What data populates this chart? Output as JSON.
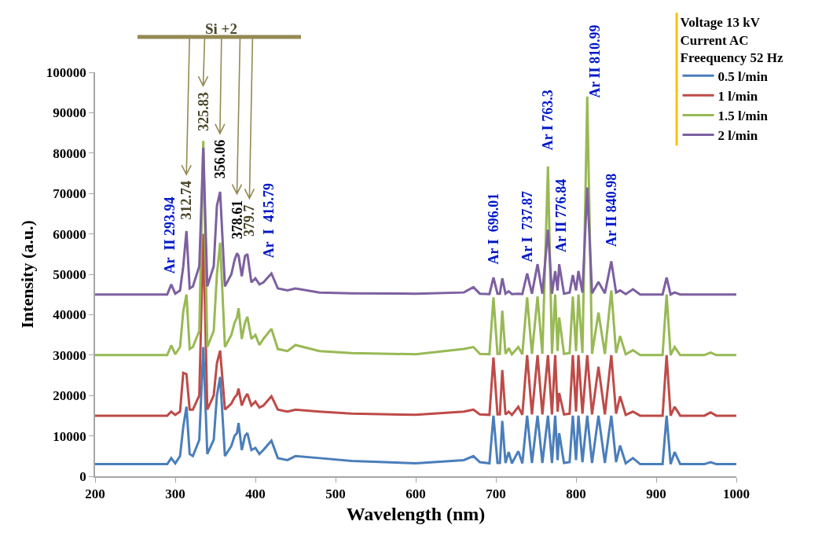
{
  "chart_data": {
    "type": "line",
    "xlabel": "Wavelength (nm)",
    "ylabel": "Intensity (a.u.)",
    "legend_title": "Voltage 13 kV\nCurrent AC\nFreequency 52 Hz",
    "legend": "top right",
    "grid": false,
    "marker": "none",
    "line_style": "solid",
    "xlim": [
      200,
      1000
    ],
    "xticks": [
      200,
      300,
      400,
      500,
      600,
      700,
      800,
      900,
      1000
    ],
    "ylim": [
      0,
      100000
    ],
    "yticks": [
      0,
      10000,
      20000,
      30000,
      40000,
      50000,
      60000,
      70000,
      80000,
      90000,
      100000
    ],
    "x": [
      200,
      290,
      295,
      300,
      306,
      310,
      314,
      318,
      322,
      330,
      335,
      340,
      348,
      352,
      356,
      362,
      370,
      374,
      377,
      379,
      383,
      387,
      390,
      395,
      400,
      405,
      410,
      420,
      428,
      440,
      450,
      480,
      520,
      600,
      660,
      672,
      680,
      692,
      697,
      702,
      705,
      708,
      712,
      716,
      720,
      728,
      733,
      739,
      745,
      752,
      758,
      765,
      770,
      774,
      777,
      779,
      785,
      792,
      796,
      800,
      803,
      808,
      814,
      820,
      828,
      836,
      844,
      850,
      855,
      862,
      871,
      880,
      908,
      913,
      918,
      923,
      930,
      960,
      968,
      975,
      1000
    ],
    "series": [
      {
        "name": "0.5 l/min",
        "color": "#4a7ebb",
        "values": [
          3000,
          3000,
          4500,
          3200,
          5000,
          12200,
          17200,
          5500,
          5000,
          9000,
          32000,
          5500,
          9000,
          20000,
          24600,
          5000,
          7500,
          10000,
          10700,
          13200,
          6500,
          10000,
          10700,
          6500,
          7000,
          5500,
          6500,
          8800,
          4500,
          4000,
          5000,
          4500,
          3800,
          3200,
          4000,
          5000,
          3500,
          3200,
          15000,
          3300,
          3300,
          13700,
          3300,
          6000,
          3200,
          6200,
          3200,
          15000,
          3300,
          15000,
          3300,
          15000,
          3300,
          15000,
          4000,
          10700,
          3300,
          3500,
          15000,
          4000,
          15000,
          3500,
          15000,
          3300,
          15000,
          3300,
          15000,
          3500,
          7600,
          3200,
          4500,
          3000,
          3000,
          15000,
          3000,
          6000,
          3000,
          3000,
          3500,
          3000,
          3000
        ]
      },
      {
        "name": "1 l/min",
        "color": "#be4b48",
        "values": [
          15000,
          15000,
          16000,
          15200,
          16000,
          25600,
          25300,
          16500,
          16500,
          20000,
          60000,
          16500,
          20000,
          28000,
          31100,
          16500,
          18000,
          19500,
          20200,
          21700,
          17500,
          19500,
          20400,
          17500,
          18500,
          17000,
          17500,
          19800,
          16500,
          16000,
          16500,
          16000,
          15500,
          15200,
          16000,
          16500,
          15300,
          15200,
          29400,
          15300,
          15300,
          26300,
          15300,
          16000,
          15200,
          17200,
          15200,
          30000,
          15300,
          30000,
          15300,
          30000,
          15300,
          30000,
          16000,
          20600,
          15300,
          15500,
          30000,
          16000,
          30000,
          15500,
          30000,
          15300,
          27100,
          15300,
          30000,
          15500,
          19800,
          15200,
          16000,
          15000,
          15000,
          30000,
          15000,
          17200,
          15000,
          15000,
          15800,
          15000,
          15000
        ]
      },
      {
        "name": "1.5 l/min",
        "color": "#98b954",
        "values": [
          30000,
          30000,
          32400,
          30200,
          32000,
          40800,
          45000,
          31500,
          32000,
          36000,
          83000,
          32000,
          36000,
          50000,
          57800,
          32000,
          35000,
          38000,
          39300,
          41600,
          34000,
          38000,
          39500,
          34000,
          35000,
          32500,
          34000,
          36500,
          31500,
          31000,
          32500,
          31000,
          30500,
          30200,
          31500,
          32000,
          30300,
          30200,
          44300,
          30300,
          30300,
          41000,
          30300,
          31700,
          30200,
          32000,
          30200,
          44300,
          30300,
          44500,
          30300,
          76700,
          30300,
          45000,
          31000,
          39300,
          30300,
          30500,
          44500,
          31000,
          45000,
          30500,
          94000,
          30300,
          40500,
          30300,
          46000,
          30500,
          34700,
          30200,
          31200,
          30000,
          30000,
          45000,
          30000,
          32000,
          30000,
          30000,
          30600,
          30000,
          30000
        ]
      },
      {
        "name": "2 l/min",
        "color": "#7d60a0",
        "values": [
          45000,
          45000,
          47500,
          45200,
          46000,
          52000,
          60700,
          46500,
          47000,
          52000,
          81300,
          47000,
          52000,
          67000,
          70400,
          47000,
          50000,
          53500,
          55200,
          54600,
          49500,
          54500,
          55000,
          48000,
          49000,
          47500,
          48000,
          50200,
          46500,
          46000,
          46500,
          45500,
          45300,
          45200,
          45500,
          46800,
          45200,
          45100,
          49200,
          45200,
          45200,
          49000,
          45200,
          45800,
          45100,
          45200,
          45100,
          50200,
          45200,
          52500,
          45200,
          61000,
          45200,
          50800,
          46000,
          52500,
          45200,
          45500,
          49800,
          46000,
          50800,
          45500,
          71500,
          45300,
          48100,
          45300,
          53200,
          45500,
          46000,
          45100,
          46300,
          45000,
          45000,
          49200,
          45000,
          45500,
          45000,
          45000,
          45000,
          45000,
          45000
        ]
      }
    ],
    "annotations": [
      "Ar  II 293.94",
      "312.74",
      "325.83",
      "356.06",
      "378.61",
      "379.7",
      "Ar  I  415.79",
      "Ar I  696.01",
      "Ar I  737.87",
      "Ar I 763.3",
      "Ar II 776.84",
      "Ar II 810.99",
      "Ar II 840.98",
      "Si +2"
    ]
  }
}
